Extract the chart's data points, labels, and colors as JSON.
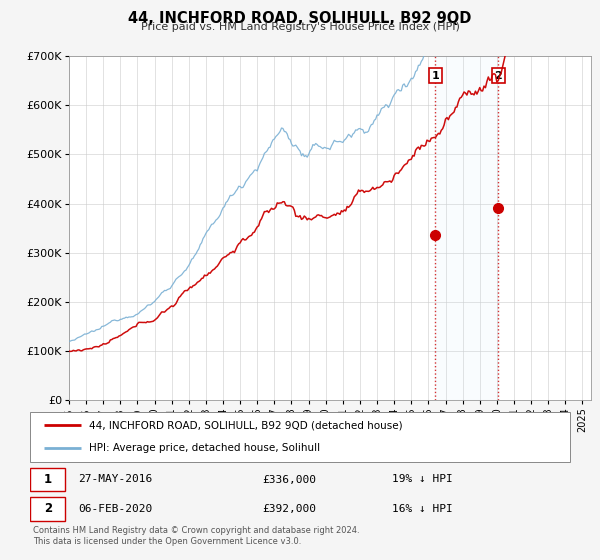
{
  "title": "44, INCHFORD ROAD, SOLIHULL, B92 9QD",
  "subtitle": "Price paid vs. HM Land Registry's House Price Index (HPI)",
  "ylim": [
    0,
    700000
  ],
  "yticks": [
    0,
    100000,
    200000,
    300000,
    400000,
    500000,
    600000,
    700000
  ],
  "ytick_labels": [
    "£0",
    "£100K",
    "£200K",
    "£300K",
    "£400K",
    "£500K",
    "£600K",
    "£700K"
  ],
  "xlim_start": 1995.0,
  "xlim_end": 2025.5,
  "xticks": [
    1995,
    1996,
    1997,
    1998,
    1999,
    2000,
    2001,
    2002,
    2003,
    2004,
    2005,
    2006,
    2007,
    2008,
    2009,
    2010,
    2011,
    2012,
    2013,
    2014,
    2015,
    2016,
    2017,
    2018,
    2019,
    2020,
    2021,
    2022,
    2023,
    2024,
    2025
  ],
  "event1_x": 2016.41,
  "event1_y": 336000,
  "event2_x": 2020.09,
  "event2_y": 392000,
  "legend_line1": "44, INCHFORD ROAD, SOLIHULL, B92 9QD (detached house)",
  "legend_line2": "HPI: Average price, detached house, Solihull",
  "red_color": "#cc0000",
  "blue_color": "#7ab0d4",
  "shade_color": "#d0e8f8",
  "bg_color": "#ffffff",
  "grid_color": "#cccccc",
  "footer": "Contains HM Land Registry data © Crown copyright and database right 2024.\nThis data is licensed under the Open Government Licence v3.0."
}
